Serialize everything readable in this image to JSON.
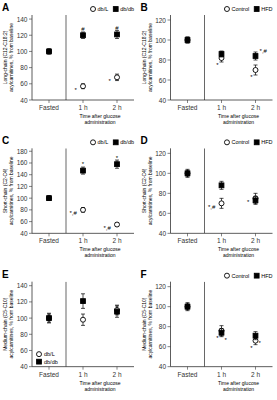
{
  "chart_data": [
    {
      "type": "scatter",
      "title": "A",
      "categories": [
        "Fasted",
        "1 h",
        "2 h"
      ],
      "xlabel": "Time after glucose\nadministration",
      "ylabel": "Long-chain (C12-C18:2)\nacylcarnitines, % from baseline",
      "ylim": [
        40,
        145
      ],
      "yticks": [
        40,
        60,
        80,
        100,
        120,
        140
      ],
      "grid": false,
      "legend": "upper right",
      "series": [
        {
          "name": "db/L",
          "color": "black",
          "marker": "open-circle",
          "values": [
            100,
            57,
            68
          ],
          "errors": [
            3,
            3,
            4
          ]
        },
        {
          "name": "db/db",
          "color": "black",
          "marker": "filled-square",
          "values": [
            100,
            120,
            121
          ],
          "errors": [
            3,
            4,
            5
          ]
        }
      ],
      "annotations": [
        {
          "x": "1 h",
          "y": 57,
          "text": "*",
          "side": "left"
        },
        {
          "x": "2 h",
          "y": 68,
          "text": "*",
          "side": "left"
        },
        {
          "x": "1 h",
          "y": 120,
          "text": "#",
          "side": "above"
        },
        {
          "x": "2 h",
          "y": 121,
          "text": "#",
          "side": "above"
        }
      ]
    },
    {
      "type": "scatter",
      "title": "B",
      "categories": [
        "Fasted",
        "1 h",
        "2 h"
      ],
      "xlabel": "Time after glucose\nadministration",
      "ylabel": "Long-chain (C12-C18:2)\nacylcarnitines, % from baseline",
      "ylim": [
        40,
        125
      ],
      "yticks": [
        40,
        60,
        80,
        100,
        120
      ],
      "grid": false,
      "legend": "upper right",
      "series": [
        {
          "name": "Control",
          "color": "black",
          "marker": "open-circle",
          "values": [
            100,
            82,
            70
          ],
          "errors": [
            3,
            4,
            5
          ]
        },
        {
          "name": "HFD",
          "color": "black",
          "marker": "filled-square",
          "values": [
            100,
            86,
            84
          ],
          "errors": [
            3,
            3,
            4
          ]
        }
      ],
      "annotations": [
        {
          "x": "1 h",
          "y": 82,
          "text": "*",
          "side": "below"
        },
        {
          "x": "2 h",
          "y": 70,
          "text": "*",
          "side": "below"
        },
        {
          "x": "2 h",
          "y": 84,
          "text": "*,#",
          "side": "right_above"
        }
      ]
    },
    {
      "type": "scatter",
      "title": "C",
      "categories": [
        "Fasted",
        "1 h",
        "2 h"
      ],
      "xlabel": "Time after glucose\nadministration",
      "ylabel": "Short-chain (C2-C4)\nacylcarnitines, % from baseline",
      "ylim": [
        40,
        185
      ],
      "yticks": [
        40,
        60,
        80,
        100,
        120,
        140,
        160,
        180
      ],
      "grid": false,
      "legend": "upper right",
      "series": [
        {
          "name": "db/L",
          "color": "black",
          "marker": "open-circle",
          "values": [
            100,
            80,
            55
          ],
          "errors": [
            3,
            4,
            3
          ]
        },
        {
          "name": "db/db",
          "color": "black",
          "marker": "filled-square",
          "values": [
            100,
            147,
            158
          ],
          "errors": [
            4,
            6,
            7
          ]
        }
      ],
      "annotations": [
        {
          "x": "1 h",
          "y": 80,
          "text": "*,#",
          "side": "left"
        },
        {
          "x": "2 h",
          "y": 55,
          "text": "*,#",
          "side": "left"
        },
        {
          "x": "1 h",
          "y": 147,
          "text": "*",
          "side": "above"
        },
        {
          "x": "2 h",
          "y": 158,
          "text": "*",
          "side": "above"
        }
      ]
    },
    {
      "type": "scatter",
      "title": "D",
      "categories": [
        "Fasted",
        "1 h",
        "2 h"
      ],
      "xlabel": "Time after glucose\nadministration",
      "ylabel": "Short-chain (C2-C4)\nacylcarnitines, % from baseline",
      "ylim": [
        40,
        125
      ],
      "yticks": [
        40,
        60,
        80,
        100,
        120
      ],
      "grid": false,
      "legend": "upper right",
      "series": [
        {
          "name": "Control",
          "color": "black",
          "marker": "open-circle",
          "values": [
            100,
            70,
            75
          ],
          "errors": [
            4,
            5,
            5
          ]
        },
        {
          "name": "HFD",
          "color": "black",
          "marker": "filled-square",
          "values": [
            100,
            88,
            73
          ],
          "errors": [
            3,
            4,
            4
          ]
        }
      ],
      "annotations": [
        {
          "x": "1 h",
          "y": 70,
          "text": "*,#",
          "side": "left"
        },
        {
          "x": "2 h",
          "y": 75,
          "text": "*",
          "side": "left"
        }
      ]
    },
    {
      "type": "scatter",
      "title": "E",
      "categories": [
        "Fasted",
        "1 h",
        "2 h"
      ],
      "xlabel": "Time after glucose\nadministration",
      "ylabel": "Medium-chain (C5-C10)\nacylcarnitines, % from baseline",
      "ylim": [
        40,
        145
      ],
      "yticks": [
        40,
        60,
        80,
        100,
        120,
        140
      ],
      "grid": false,
      "legend": "lower left",
      "series": [
        {
          "name": "db/L",
          "color": "black",
          "marker": "open-circle",
          "values": [
            100,
            98,
            110
          ],
          "errors": [
            5,
            7,
            6
          ]
        },
        {
          "name": "db/db",
          "color": "black",
          "marker": "filled-square",
          "values": [
            100,
            121,
            108
          ],
          "errors": [
            6,
            9,
            7
          ]
        }
      ],
      "annotations": []
    },
    {
      "type": "scatter",
      "title": "F",
      "categories": [
        "Fasted",
        "1 h",
        "2 h"
      ],
      "xlabel": "Time after glucose\nadministration",
      "ylabel": "Medium-chain (C5-C10)\nacylcarnitines, % from baseline",
      "ylim": [
        40,
        125
      ],
      "yticks": [
        40,
        60,
        80,
        100,
        120
      ],
      "grid": false,
      "legend": "upper right",
      "series": [
        {
          "name": "Control",
          "color": "black",
          "marker": "open-circle",
          "values": [
            100,
            76,
            66
          ],
          "errors": [
            4,
            5,
            4
          ]
        },
        {
          "name": "HFD",
          "color": "black",
          "marker": "filled-square",
          "values": [
            100,
            74,
            71
          ],
          "errors": [
            3,
            4,
            4
          ]
        }
      ],
      "annotations": [
        {
          "x": "1 h",
          "y": 76,
          "text": "*",
          "side": "below"
        },
        {
          "x": "2 h",
          "y": 66,
          "text": "*",
          "side": "below"
        },
        {
          "x": "1 h",
          "y": 74,
          "text": "*",
          "side": "below2"
        },
        {
          "x": "2 h",
          "y": 71,
          "text": "*",
          "side": "below2"
        }
      ]
    }
  ]
}
